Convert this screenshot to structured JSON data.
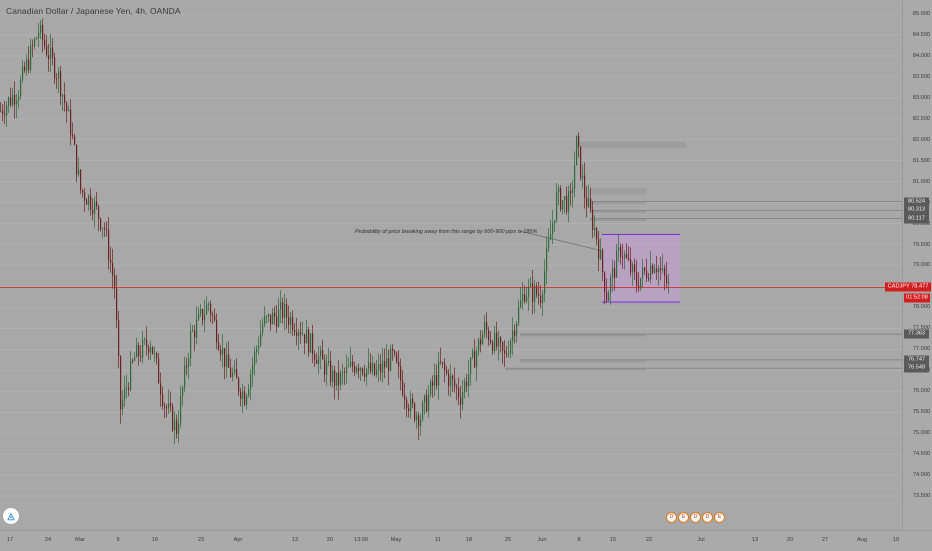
{
  "header": {
    "symbol_title": "Canadian Dollar / Japanese Yen, 4h, OANDA"
  },
  "annotation": {
    "text": "Probability of price breaking away from this range by 600-900 pips is 185%"
  },
  "price_scale": {
    "labels": [
      "85.000",
      "84.500",
      "84.000",
      "83.500",
      "83.000",
      "82.500",
      "82.000",
      "81.500",
      "81.000",
      "80.500",
      "80.000",
      "79.500",
      "79.000",
      "78.500",
      "78.000",
      "77.500",
      "77.000",
      "76.500",
      "76.000",
      "75.500",
      "75.000",
      "74.500",
      "74.000",
      "73.500"
    ],
    "level_tags": [
      "80.524",
      "80.313",
      "80.117",
      "77.363",
      "76.747",
      "76.549"
    ],
    "last_price": "CADJPY 78.477",
    "countdown": "01:52:08"
  },
  "time_axis": {
    "labels": [
      "17",
      "24",
      "Mar",
      "9",
      "16",
      "23",
      "Apr",
      "13",
      "20",
      "13:00",
      "May",
      "11",
      "18",
      "25",
      "Jun",
      "8",
      "15",
      "22",
      "Jul",
      "13",
      "20",
      "27",
      "Aug",
      "10"
    ]
  },
  "logo": {
    "glyph": "◬"
  },
  "event_badges": [
    "D",
    "E",
    "D",
    "D",
    "E"
  ],
  "colors": {
    "background": "#a8a8a8",
    "bull_candle": "#2f6b3a",
    "bear_candle": "#6b2222",
    "last_price_line": "#d11f1f",
    "range_box_fill": "#c79ad6",
    "range_box_border": "#7b2fe0"
  },
  "chart_data": {
    "type": "candlestick",
    "symbol": "CADJPY",
    "timeframe": "4h",
    "ylim": [
      73.5,
      85.0
    ],
    "path_points": [
      {
        "t": 0,
        "p": 82.7
      },
      {
        "t": 18,
        "p": 83.2
      },
      {
        "t": 38,
        "p": 84.6
      },
      {
        "t": 58,
        "p": 83.5
      },
      {
        "t": 70,
        "p": 82.3
      },
      {
        "t": 80,
        "p": 80.8
      },
      {
        "t": 92,
        "p": 80.5
      },
      {
        "t": 104,
        "p": 79.9
      },
      {
        "t": 114,
        "p": 78.5
      },
      {
        "t": 120,
        "p": 75.6
      },
      {
        "t": 134,
        "p": 76.8
      },
      {
        "t": 150,
        "p": 77.2
      },
      {
        "t": 164,
        "p": 75.7
      },
      {
        "t": 176,
        "p": 75.1
      },
      {
        "t": 190,
        "p": 77.3
      },
      {
        "t": 208,
        "p": 78.1
      },
      {
        "t": 226,
        "p": 76.6
      },
      {
        "t": 244,
        "p": 75.9
      },
      {
        "t": 262,
        "p": 77.6
      },
      {
        "t": 282,
        "p": 77.9
      },
      {
        "t": 300,
        "p": 77.5
      },
      {
        "t": 318,
        "p": 76.8
      },
      {
        "t": 336,
        "p": 76.2
      },
      {
        "t": 356,
        "p": 76.7
      },
      {
        "t": 374,
        "p": 76.4
      },
      {
        "t": 392,
        "p": 76.8
      },
      {
        "t": 410,
        "p": 75.6
      },
      {
        "t": 420,
        "p": 75.4
      },
      {
        "t": 440,
        "p": 76.6
      },
      {
        "t": 460,
        "p": 75.9
      },
      {
        "t": 484,
        "p": 77.5
      },
      {
        "t": 504,
        "p": 76.8
      },
      {
        "t": 524,
        "p": 78.4
      },
      {
        "t": 540,
        "p": 78.3
      },
      {
        "t": 556,
        "p": 80.6
      },
      {
        "t": 570,
        "p": 80.5
      },
      {
        "t": 576,
        "p": 81.9
      },
      {
        "t": 584,
        "p": 80.7
      },
      {
        "t": 596,
        "p": 79.7
      },
      {
        "t": 606,
        "p": 78.3
      },
      {
        "t": 620,
        "p": 79.4
      },
      {
        "t": 636,
        "p": 78.6
      },
      {
        "t": 654,
        "p": 79.1
      },
      {
        "t": 668,
        "p": 78.5
      }
    ],
    "last_price": 78.477,
    "range_box": {
      "top": 79.74,
      "bottom": 78.13
    },
    "levels": [
      81.88,
      80.77,
      80.524,
      80.313,
      80.117,
      77.363,
      76.747,
      76.549
    ],
    "annotation_line_from": {
      "t": 520,
      "p": 79.82
    },
    "annotation_line_to": {
      "t": 602,
      "p": 79.35
    }
  }
}
